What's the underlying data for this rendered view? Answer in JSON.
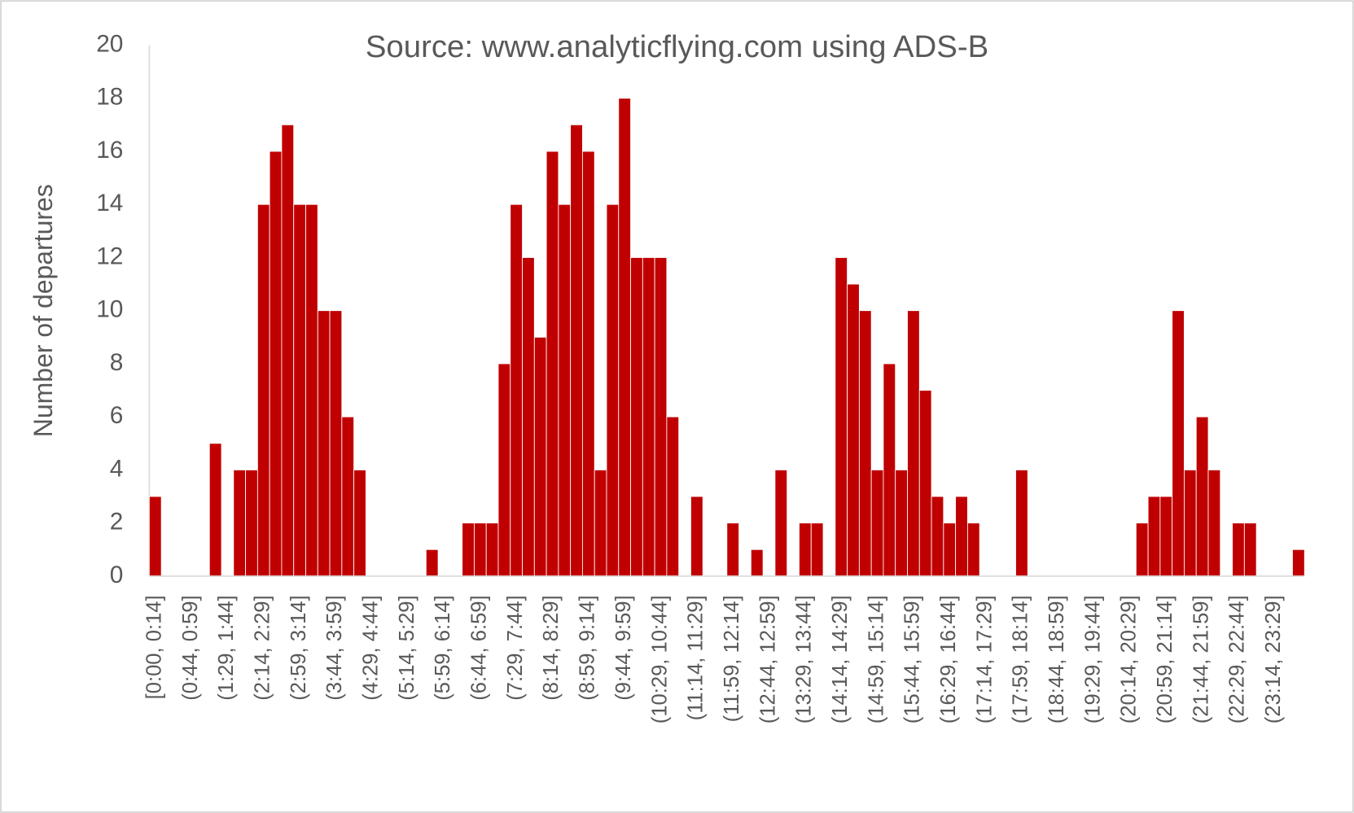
{
  "chart_data": {
    "type": "bar",
    "title": "Source: www.analyticflying.com using ADS-B",
    "y_label": "Number of departures",
    "color": "#c00000",
    "grid": false,
    "ylim": [
      0,
      20
    ],
    "yticks": [
      0,
      2,
      4,
      6,
      8,
      10,
      12,
      14,
      16,
      18,
      20
    ],
    "categories": [
      "[0:00, 0:14]",
      null,
      null,
      "(0:44, 0:59]",
      null,
      null,
      "(1:29, 1:44]",
      null,
      null,
      "(2:14, 2:29]",
      null,
      null,
      "(2:59, 3:14]",
      null,
      null,
      "(3:44, 3:59]",
      null,
      null,
      "(4:29, 4:44]",
      null,
      null,
      "(5:14, 5:29]",
      null,
      null,
      "(5:59, 6:14]",
      null,
      null,
      "(6:44, 6:59]",
      null,
      null,
      "(7:29, 7:44]",
      null,
      null,
      "(8:14, 8:29]",
      null,
      null,
      "(8:59, 9:14]",
      null,
      null,
      "(9:44, 9:59]",
      null,
      null,
      "(10:29, 10:44]",
      null,
      null,
      "(11:14, 11:29]",
      null,
      null,
      "(11:59, 12:14]",
      null,
      null,
      "(12:44, 12:59]",
      null,
      null,
      "(13:29, 13:44]",
      null,
      null,
      "(14:14, 14:29]",
      null,
      null,
      "(14:59, 15:14]",
      null,
      null,
      "(15:44, 15:59]",
      null,
      null,
      "(16:29, 16:44]",
      null,
      null,
      "(17:14, 17:29]",
      null,
      null,
      "(17:59, 18:14]",
      null,
      null,
      "(18:44, 18:59]",
      null,
      null,
      "(19:29, 19:44]",
      null,
      null,
      "(20:14, 20:29]",
      null,
      null,
      "(20:59, 21:14]",
      null,
      null,
      "(21:44, 21:59]",
      null,
      null,
      "(22:29, 22:44]",
      null,
      null,
      "(23:14, 23:29]",
      null,
      null
    ],
    "values": [
      3,
      0,
      0,
      0,
      0,
      5,
      0,
      4,
      4,
      14,
      16,
      17,
      14,
      14,
      10,
      10,
      6,
      4,
      0,
      0,
      0,
      0,
      0,
      1,
      0,
      0,
      2,
      2,
      2,
      8,
      14,
      12,
      9,
      16,
      14,
      17,
      16,
      4,
      14,
      18,
      12,
      12,
      12,
      6,
      0,
      3,
      0,
      0,
      2,
      0,
      1,
      0,
      4,
      0,
      2,
      2,
      0,
      12,
      11,
      10,
      4,
      8,
      4,
      10,
      7,
      3,
      2,
      3,
      2,
      0,
      0,
      0,
      4,
      0,
      0,
      0,
      0,
      0,
      0,
      0,
      0,
      0,
      2,
      3,
      3,
      10,
      4,
      6,
      4,
      0,
      2,
      2,
      0,
      0,
      0,
      1
    ]
  }
}
